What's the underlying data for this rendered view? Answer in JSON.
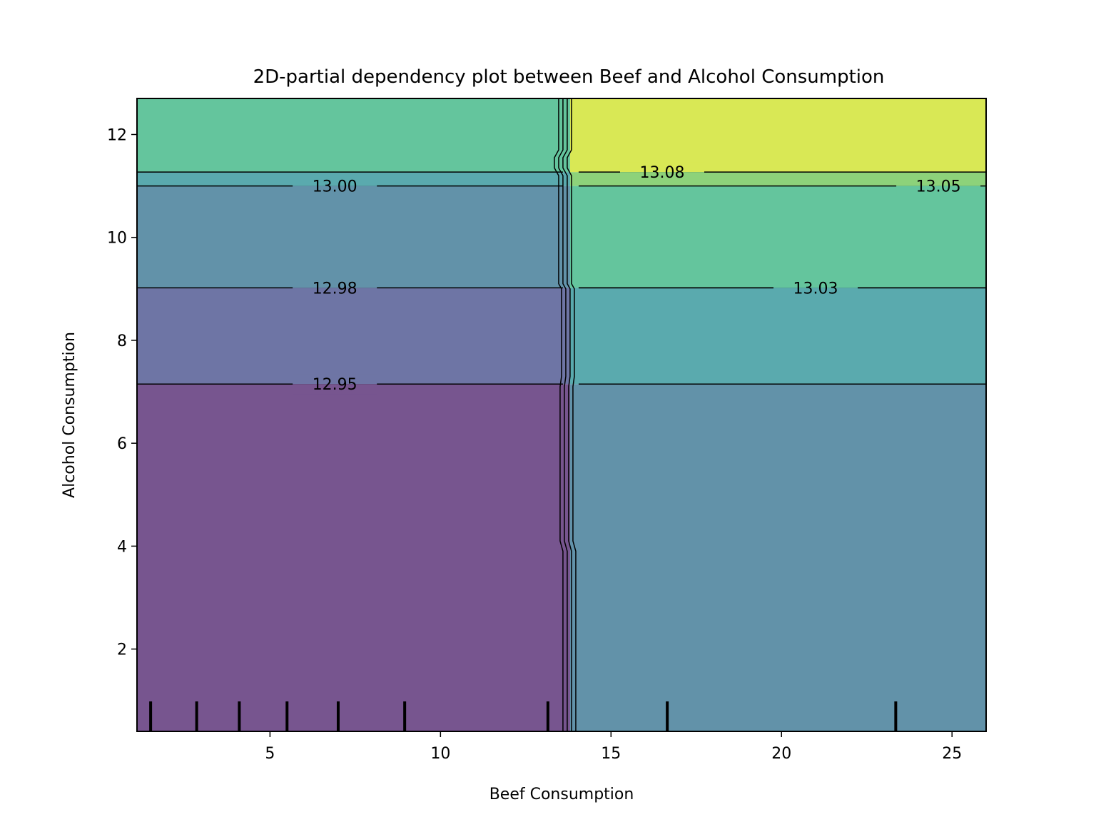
{
  "chart_data": {
    "type": "heatmap",
    "subtype": "filled-contour",
    "title": "2D-partial dependency plot between Beef and Alcohol Consumption",
    "xlabel": "Beef Consumption",
    "ylabel": "Alcohol Consumption",
    "xlim": [
      1.1,
      26.0
    ],
    "ylim": [
      0.4,
      12.7
    ],
    "xticks": [
      5,
      10,
      15,
      20,
      25
    ],
    "yticks": [
      2,
      4,
      6,
      8,
      10,
      12
    ],
    "grid": false,
    "colormap": "viridis",
    "x_split": 13.8,
    "regions": [
      {
        "x": [
          1.1,
          13.8
        ],
        "y": [
          0.4,
          7.15
        ],
        "value": 12.94,
        "color": "#77558f"
      },
      {
        "x": [
          1.1,
          13.8
        ],
        "y": [
          7.15,
          9.02
        ],
        "value": 12.965,
        "color": "#6e75a5"
      },
      {
        "x": [
          1.1,
          13.8
        ],
        "y": [
          9.02,
          11.0
        ],
        "value": 12.99,
        "color": "#6292a9"
      },
      {
        "x": [
          1.1,
          13.8
        ],
        "y": [
          11.0,
          11.27
        ],
        "value": 13.015,
        "color": "#5aaaae"
      },
      {
        "x": [
          1.1,
          13.8
        ],
        "y": [
          11.27,
          12.7
        ],
        "value": 13.04,
        "color": "#64c59d"
      },
      {
        "x": [
          13.8,
          26.0
        ],
        "y": [
          0.4,
          7.15
        ],
        "value": 12.99,
        "color": "#6292a9"
      },
      {
        "x": [
          13.8,
          26.0
        ],
        "y": [
          7.15,
          9.02
        ],
        "value": 13.015,
        "color": "#5aaaae"
      },
      {
        "x": [
          13.8,
          26.0
        ],
        "y": [
          9.02,
          11.0
        ],
        "value": 13.04,
        "color": "#64c59d"
      },
      {
        "x": [
          13.8,
          26.0
        ],
        "y": [
          11.0,
          11.27
        ],
        "value": 13.065,
        "color": "#8dd27a"
      },
      {
        "x": [
          13.8,
          26.0
        ],
        "y": [
          11.27,
          12.7
        ],
        "value": 13.09,
        "color": "#d9e855"
      }
    ],
    "contour_levels": [
      {
        "label": "12.95",
        "y_left": 7.15,
        "y_right": null,
        "label_x": 6.9,
        "side": "left"
      },
      {
        "label": "12.98",
        "y_left": 9.02,
        "y_right": 7.15,
        "label_x": 6.9,
        "side": "left"
      },
      {
        "label": "13.00",
        "y_left": 11.0,
        "y_right": 9.02,
        "label_x": 6.9,
        "side": "left"
      },
      {
        "label": "13.03",
        "y_left": 11.27,
        "y_right": 9.02,
        "label_x": 21.0,
        "side": "right"
      },
      {
        "label": "13.05",
        "y_left": null,
        "y_right": 11.0,
        "label_x": 24.6,
        "side": "right"
      },
      {
        "label": "13.08",
        "y_left": null,
        "y_right": 11.27,
        "label_x": 16.5,
        "side": "right"
      }
    ],
    "rug_x": [
      1.5,
      2.85,
      4.1,
      5.5,
      7.0,
      8.95,
      13.15,
      16.65,
      23.35
    ]
  }
}
